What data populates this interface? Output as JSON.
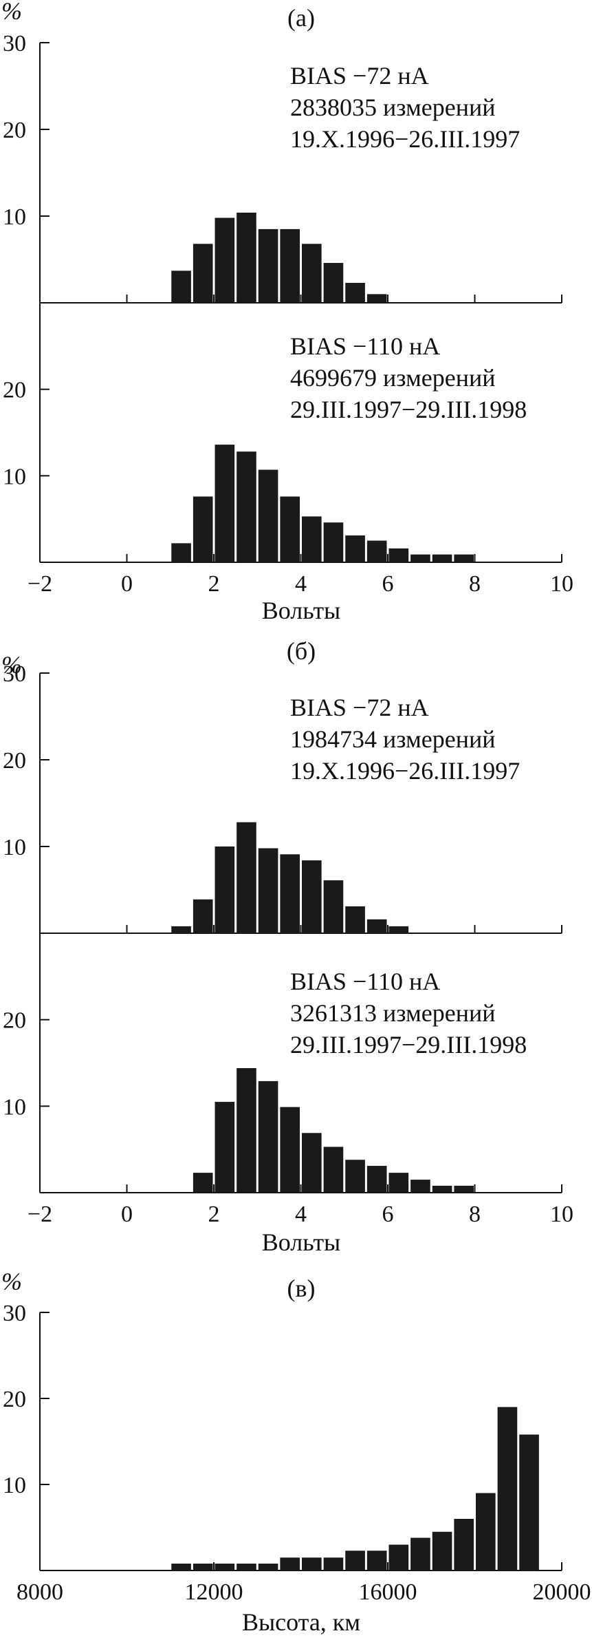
{
  "figure": {
    "panels": [
      {
        "id": "a",
        "label": "(a)",
        "y_unit": "%"
      },
      {
        "id": "b",
        "label": "(б)",
        "y_unit": "%"
      },
      {
        "id": "c",
        "label": "(в)",
        "y_unit": "%"
      }
    ]
  },
  "chart_data": [
    {
      "type": "bar",
      "panel": "a",
      "subplot": "upper",
      "title": "(a)",
      "ylabel": "%",
      "xlabel": "",
      "xlim": [
        -2,
        10
      ],
      "ylim": [
        0,
        30
      ],
      "yticks": [
        10,
        20,
        30
      ],
      "annotation": [
        "BIAS −72 нА",
        "2838035 измерений",
        "19.X.1996−26.III.1997"
      ],
      "bin_width": 0.5,
      "x": [
        1.25,
        1.75,
        2.25,
        2.75,
        3.25,
        3.75,
        4.25,
        4.75,
        5.25,
        5.75
      ],
      "values": [
        3.7,
        6.8,
        9.8,
        10.4,
        8.5,
        8.5,
        6.8,
        4.6,
        2.3,
        1.0
      ]
    },
    {
      "type": "bar",
      "panel": "a",
      "subplot": "lower",
      "title": "",
      "ylabel": "%",
      "xlabel": "Вольты",
      "xlim": [
        -2,
        10
      ],
      "ylim": [
        0,
        30
      ],
      "xticks": [
        -2,
        0,
        2,
        4,
        6,
        8,
        10
      ],
      "xtick_labels": [
        "−2",
        "0",
        "2",
        "4",
        "6",
        "8",
        "10"
      ],
      "yticks": [
        10,
        20
      ],
      "annotation": [
        "BIAS −110 нА",
        "4699679 измерений",
        "29.III.1997−29.III.1998"
      ],
      "bin_width": 0.5,
      "x": [
        1.25,
        1.75,
        2.25,
        2.75,
        3.25,
        3.75,
        4.25,
        4.75,
        5.25,
        5.75,
        6.25,
        6.75,
        7.25,
        7.75
      ],
      "values": [
        2.2,
        7.6,
        13.6,
        12.8,
        10.7,
        7.6,
        5.3,
        4.6,
        3.1,
        2.5,
        1.6,
        0.9,
        0.9,
        0.9
      ]
    },
    {
      "type": "bar",
      "panel": "b",
      "subplot": "upper",
      "title": "(б)",
      "ylabel": "%",
      "xlabel": "",
      "xlim": [
        -2,
        10
      ],
      "ylim": [
        0,
        30
      ],
      "yticks": [
        10,
        20,
        30
      ],
      "annotation": [
        "BIAS −72 нА",
        "1984734 измерений",
        "19.X.1996−26.III.1997"
      ],
      "bin_width": 0.5,
      "x": [
        1.25,
        1.75,
        2.25,
        2.75,
        3.25,
        3.75,
        4.25,
        4.75,
        5.25,
        5.75,
        6.25
      ],
      "values": [
        0.8,
        3.9,
        10.0,
        12.8,
        9.8,
        9.1,
        8.4,
        6.1,
        3.1,
        1.6,
        0.8
      ]
    },
    {
      "type": "bar",
      "panel": "b",
      "subplot": "lower",
      "title": "",
      "ylabel": "%",
      "xlabel": "Вольты",
      "xlim": [
        -2,
        10
      ],
      "ylim": [
        0,
        30
      ],
      "xticks": [
        -2,
        0,
        2,
        4,
        6,
        8,
        10
      ],
      "xtick_labels": [
        "−2",
        "0",
        "2",
        "4",
        "6",
        "8",
        "10"
      ],
      "yticks": [
        10,
        20
      ],
      "annotation": [
        "BIAS −110 нА",
        "3261313 измерений",
        "29.III.1997−29.III.1998"
      ],
      "bin_width": 0.5,
      "x": [
        1.75,
        2.25,
        2.75,
        3.25,
        3.75,
        4.25,
        4.75,
        5.25,
        5.75,
        6.25,
        6.75,
        7.25,
        7.75
      ],
      "values": [
        2.3,
        10.5,
        14.4,
        12.9,
        9.9,
        6.9,
        5.3,
        3.8,
        3.1,
        2.3,
        1.5,
        0.8,
        0.8
      ]
    },
    {
      "type": "bar",
      "panel": "c",
      "subplot": "single",
      "title": "(в)",
      "ylabel": "%",
      "xlabel": "Высота, км",
      "xlim": [
        8000,
        20000
      ],
      "ylim": [
        0,
        30
      ],
      "xticks": [
        8000,
        12000,
        16000,
        20000
      ],
      "xtick_labels": [
        "8000",
        "12000",
        "16000",
        "20000"
      ],
      "yticks": [
        10,
        20,
        30
      ],
      "bin_width": 500,
      "x": [
        11250,
        11750,
        12250,
        12750,
        13250,
        13750,
        14250,
        14750,
        15250,
        15750,
        16250,
        16750,
        17250,
        17750,
        18250,
        18750,
        19250
      ],
      "values": [
        0.8,
        0.8,
        0.8,
        0.8,
        0.8,
        1.5,
        1.5,
        1.5,
        2.3,
        2.3,
        3.0,
        3.8,
        4.5,
        6.0,
        9.0,
        19.0,
        15.8
      ]
    }
  ]
}
